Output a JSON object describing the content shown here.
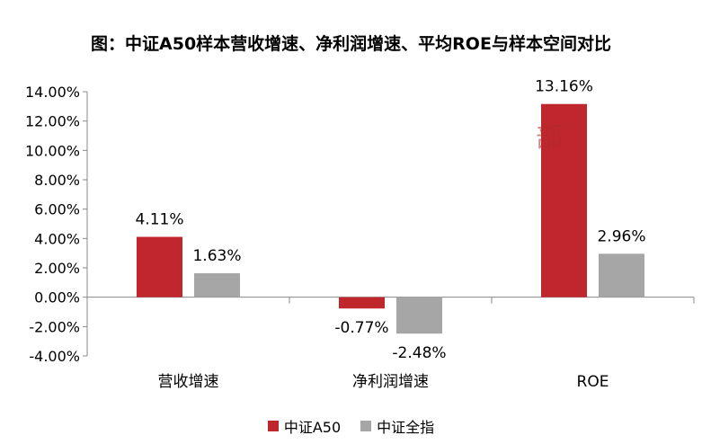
{
  "title": "图：中证A50样本营收增速、净利润增速、平均ROE与样本空间对比",
  "chart_data": {
    "type": "bar",
    "categories": [
      "营收增速",
      "净利润增速",
      "ROE"
    ],
    "series": [
      {
        "name": "中证A50",
        "values": [
          4.11,
          -0.77,
          13.16
        ],
        "color": "#c0272d",
        "labels": [
          "4.11%",
          "-0.77%",
          "13.16%"
        ]
      },
      {
        "name": "中证全指",
        "values": [
          1.63,
          -2.48,
          2.96
        ],
        "color": "#a6a6a6",
        "labels": [
          "1.63%",
          "-2.48%",
          "2.96%"
        ]
      }
    ],
    "ylim": [
      -4,
      14
    ],
    "yticks": [
      -4,
      -2,
      0,
      2,
      4,
      6,
      8,
      10,
      12,
      14
    ],
    "ytick_labels": [
      "-4.00%",
      "-2.00%",
      "0.00%",
      "2.00%",
      "4.00%",
      "6.00%",
      "8.00%",
      "10.00%",
      "12.00%",
      "14.00%"
    ],
    "grid": false,
    "legend": "bottom"
  },
  "watermark": "部"
}
